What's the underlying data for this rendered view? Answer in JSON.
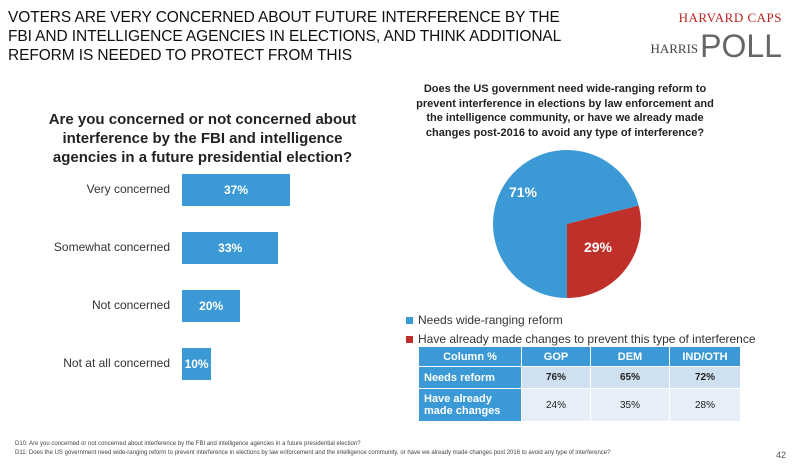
{
  "header": {
    "title": "VOTERS ARE VERY CONCERNED ABOUT FUTURE INTERFERENCE BY THE FBI AND INTELLIGENCE AGENCIES IN ELECTIONS, AND THINK ADDITIONAL REFORM IS NEEDED TO PROTECT FROM THIS",
    "logo_line1": "HARVARD CAPS",
    "logo_line2": "HARRIS",
    "logo_poll": "POLL"
  },
  "chart_data": [
    {
      "type": "bar",
      "title": "Are you concerned or not concerned about interference by the FBI and intelligence agencies in a future presidential election?",
      "categories": [
        "Very concerned",
        "Somewhat concerned",
        "Not concerned",
        "Not at all concerned"
      ],
      "values": [
        37,
        33,
        20,
        10
      ],
      "labels": [
        "37%",
        "33%",
        "20%",
        "10%"
      ],
      "unit": "%"
    },
    {
      "type": "pie",
      "title": "Does the US government need wide-ranging reform to prevent interference in elections by law enforcement and the intelligence community, or have we already made changes post-2016 to avoid any type of interference?",
      "slices": [
        {
          "name": "Needs wide-ranging reform",
          "value": 71,
          "label": "71%",
          "color": "#3b9ad6"
        },
        {
          "name": "Have already made changes to prevent this type of interference",
          "value": 29,
          "label": "29%",
          "color": "#c0302a"
        }
      ],
      "legend": "bottom"
    },
    {
      "type": "table",
      "columns": [
        "Column %",
        "GOP",
        "DEM",
        "IND/OTH"
      ],
      "rows": [
        {
          "label": "Needs reform",
          "values": [
            "76%",
            "65%",
            "72%"
          ]
        },
        {
          "label": "Have already made changes",
          "values": [
            "24%",
            "35%",
            "28%"
          ]
        }
      ]
    }
  ],
  "footnotes": [
    "D10: Are you concerned or not concerned about interference by the FBI and intelligence agencies in a future presidential election?",
    "D11: Does the US government need wide-ranging reform to prevent interference in elections by law enforcement and the intelligence community, or have we already made changes post 2016 to avoid any type of interference?"
  ],
  "page_number": "42"
}
